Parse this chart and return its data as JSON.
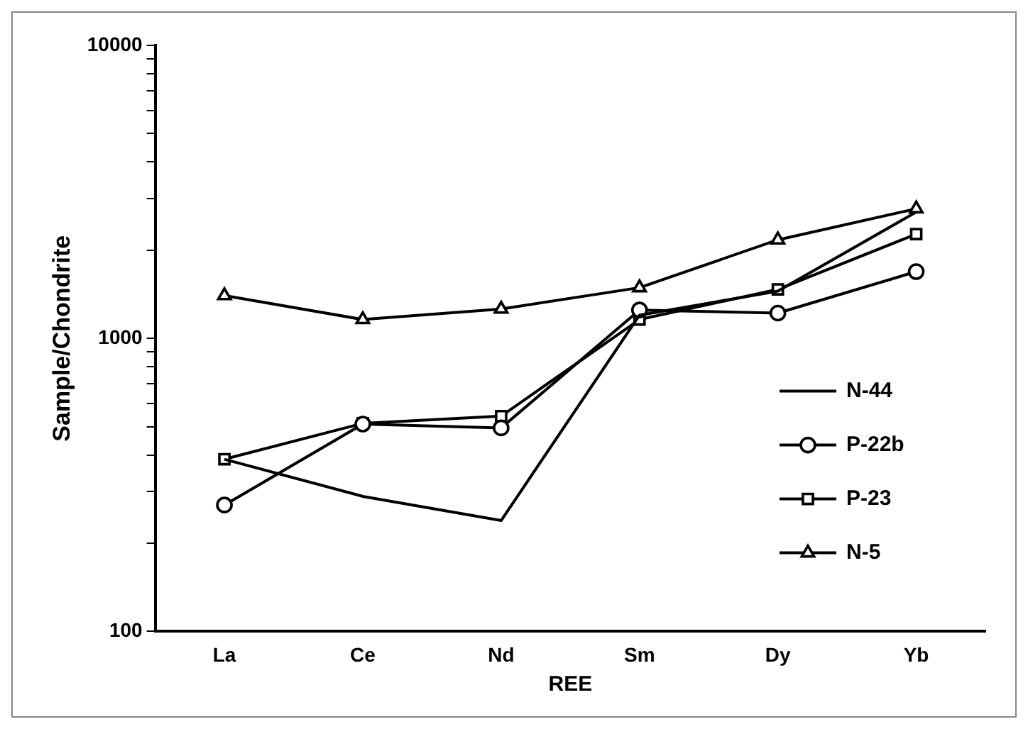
{
  "chart_data": {
    "type": "line",
    "xlabel": "REE",
    "ylabel": "Sample/Chondrite",
    "categories": [
      "La",
      "Ce",
      "Nd",
      "Sm",
      "Dy",
      "Yb"
    ],
    "log": "y",
    "ylim": [
      100,
      10000
    ],
    "yticks": [
      100,
      {
        "value": 200,
        "label": null
      },
      {
        "value": 300,
        "label": null
      },
      {
        "value": 400,
        "label": null
      },
      {
        "value": 500,
        "label": null
      },
      {
        "value": 600,
        "label": null
      },
      {
        "value": 700,
        "label": null
      },
      {
        "value": 800,
        "label": null
      },
      {
        "value": 900,
        "label": null
      },
      1000,
      {
        "value": 2000,
        "label": null
      },
      {
        "value": 3000,
        "label": null
      },
      {
        "value": 4000,
        "label": null
      },
      {
        "value": 5000,
        "label": null
      },
      {
        "value": 6000,
        "label": null
      },
      {
        "value": 7000,
        "label": null
      },
      {
        "value": 8000,
        "label": null
      },
      {
        "value": 9000,
        "label": null
      },
      10000
    ],
    "grid": false,
    "legend": "right",
    "line_style": "solid",
    "series": [
      {
        "name": "N-44",
        "color": "#000000",
        "marker": "none",
        "values": [
          387,
          289,
          239,
          1200,
          1450,
          2700
        ]
      },
      {
        "name": "P-22b",
        "color": "#000000",
        "marker": "circle",
        "values": [
          270,
          510,
          495,
          1250,
          1220,
          1690
        ]
      },
      {
        "name": "P-23",
        "color": "#000000",
        "marker": "square",
        "values": [
          387,
          513,
          543,
          1160,
          1470,
          2270
        ]
      },
      {
        "name": "N-5",
        "color": "#000000",
        "marker": "triangle",
        "values": [
          1400,
          1160,
          1260,
          1490,
          2170,
          2770
        ]
      }
    ]
  }
}
